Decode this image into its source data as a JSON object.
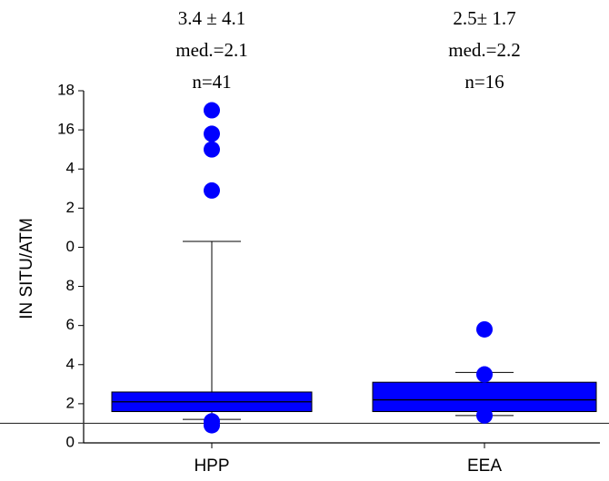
{
  "chart_data": {
    "type": "box",
    "y_label": "IN SITU/ATM",
    "categories": [
      "HPP",
      "EEA"
    ],
    "annotations": [
      [
        "3.4 ± 4.1",
        "med.=2.1",
        "n=41"
      ],
      [
        "2.5± 1.7",
        "med.=2.2",
        "n=16"
      ]
    ],
    "color": "#0000ff",
    "boxes": [
      {
        "q1": 1.6,
        "median": 2.1,
        "q3": 2.6,
        "whisker_low": 1.2,
        "whisker_high": 10.3,
        "outliers": [
          17.0,
          15.8,
          15.0,
          12.9,
          1.1,
          0.9
        ]
      },
      {
        "q1": 1.6,
        "median": 2.2,
        "q3": 3.1,
        "whisker_low": 1.4,
        "whisker_high": 3.6,
        "outliers": [
          5.8,
          3.5,
          1.4
        ]
      }
    ],
    "reference_line": 1.0,
    "ylim": [
      0,
      18
    ],
    "yticks": [
      0,
      2,
      4,
      6,
      8,
      {
        "value": 10,
        "label": "0"
      },
      {
        "value": 12,
        "label": "2"
      },
      {
        "value": 14,
        "label": "4"
      },
      16,
      18
    ]
  }
}
